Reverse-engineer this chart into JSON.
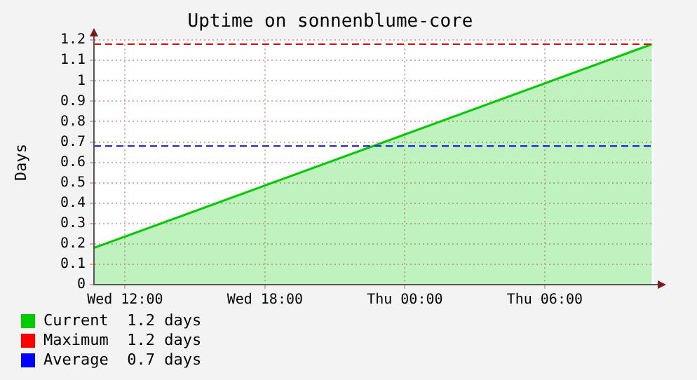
{
  "chart_data": {
    "type": "area",
    "title": "Uptime on sonnenblume-core",
    "ylabel": "Days",
    "x": [
      "--01-03T10:40",
      "--01-04T10:36"
    ],
    "series": [
      {
        "name": "Current",
        "color": "#00cc00",
        "values": [
          0.18,
          1.18
        ]
      }
    ],
    "xlim": [
      "--01-03T10:40",
      "--01-04T10:40"
    ],
    "xticks": [
      {
        "value": "--01-03T12:00",
        "label": "Wed 12:00"
      },
      {
        "value": "--01-03T18:00",
        "label": "Wed 18:00"
      },
      {
        "value": "--01-04T00:00",
        "label": "Thu 00:00"
      },
      {
        "value": "--01-04T06:00",
        "label": "Thu 06:00"
      }
    ],
    "ylim": [
      0,
      1.2
    ],
    "yticks": [
      0,
      0.1,
      0.2,
      0.3,
      0.4,
      0.5,
      0.6,
      0.7,
      0.8,
      0.9,
      1.0,
      1.1,
      1.2
    ],
    "ref_lines": [
      {
        "axis": "y",
        "value": 1.18,
        "label": "Maximum",
        "color": "#ff0000",
        "line_style": "dashed"
      },
      {
        "axis": "y",
        "value": 0.68,
        "label": "Average",
        "color": "#0000ff",
        "line_style": "dashed"
      }
    ],
    "annotations": [
      "1.2 days",
      "1.2 days",
      "0.7 days"
    ],
    "grid": true,
    "legend": "bottom left"
  }
}
